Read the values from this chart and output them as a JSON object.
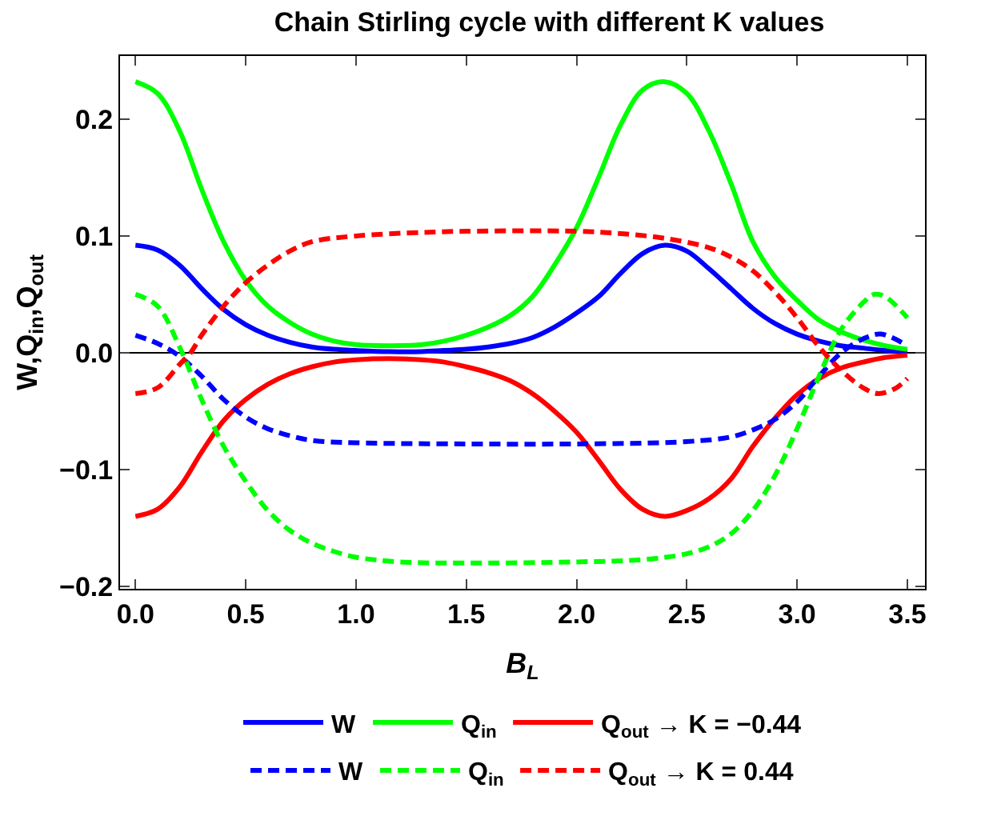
{
  "chart_data": {
    "type": "line",
    "title": "Chain Stirling cycle with different K values",
    "xlabel": "B$_{L}$",
    "ylabel": "W,Q$_{in}$,Q$_{out}$",
    "xlim": [
      -0.07,
      3.58
    ],
    "ylim": [
      -0.202,
      0.254
    ],
    "xticks": [
      {
        "value": 0,
        "label": "0.0"
      },
      {
        "value": 0.5,
        "label": "0.5"
      },
      {
        "value": 1,
        "label": "1.0"
      },
      {
        "value": 1.5,
        "label": "1.5"
      },
      {
        "value": 2,
        "label": "2.0"
      },
      {
        "value": 2.5,
        "label": "2.5"
      },
      {
        "value": 3,
        "label": "3.0"
      },
      {
        "value": 3.5,
        "label": "3.5"
      }
    ],
    "yticks": [
      {
        "value": -0.2,
        "label": "−0.2"
      },
      {
        "value": -0.1,
        "label": "−0.1"
      },
      {
        "value": 0,
        "label": "0.0"
      },
      {
        "value": 0.1,
        "label": "0.1"
      },
      {
        "value": 0.2,
        "label": "0.2"
      }
    ],
    "grid": false,
    "legend": "bottom",
    "marker": "none",
    "ref_lines": [
      {
        "axis": "y",
        "value": 0,
        "color": "#000000"
      }
    ],
    "series": [
      {
        "name": "W",
        "color": "#0000ff",
        "line_style": "solid",
        "x": [
          0,
          0.1,
          0.2,
          0.3,
          0.4,
          0.5,
          0.6,
          0.7,
          0.8,
          0.9,
          1.0,
          1.15,
          1.3,
          1.4,
          1.5,
          1.6,
          1.7,
          1.8,
          1.9,
          2.0,
          2.1,
          2.2,
          2.3,
          2.4,
          2.5,
          2.6,
          2.7,
          2.8,
          2.9,
          3.0,
          3.1,
          3.2,
          3.3,
          3.4,
          3.5
        ],
        "values": [
          0.092,
          0.088,
          0.075,
          0.055,
          0.037,
          0.024,
          0.015,
          0.009,
          0.005,
          0.003,
          0.002,
          0.001,
          0.001,
          0.002,
          0.003,
          0.005,
          0.008,
          0.013,
          0.022,
          0.034,
          0.048,
          0.068,
          0.085,
          0.092,
          0.087,
          0.072,
          0.055,
          0.038,
          0.025,
          0.016,
          0.01,
          0.006,
          0.004,
          0.002,
          0.001
        ]
      },
      {
        "name": "Q$_{in}$",
        "color": "#00ff00",
        "line_style": "solid",
        "x": [
          0,
          0.1,
          0.2,
          0.3,
          0.4,
          0.5,
          0.6,
          0.7,
          0.8,
          0.9,
          1.0,
          1.15,
          1.3,
          1.4,
          1.5,
          1.6,
          1.7,
          1.8,
          1.9,
          2.0,
          2.1,
          2.2,
          2.3,
          2.4,
          2.5,
          2.6,
          2.7,
          2.8,
          2.9,
          3.0,
          3.1,
          3.2,
          3.3,
          3.4,
          3.5
        ],
        "values": [
          0.232,
          0.222,
          0.19,
          0.14,
          0.095,
          0.062,
          0.04,
          0.026,
          0.016,
          0.01,
          0.007,
          0.006,
          0.007,
          0.01,
          0.015,
          0.022,
          0.032,
          0.048,
          0.075,
          0.107,
          0.15,
          0.195,
          0.225,
          0.232,
          0.222,
          0.19,
          0.145,
          0.095,
          0.065,
          0.045,
          0.028,
          0.018,
          0.011,
          0.006,
          0.003
        ]
      },
      {
        "name": "Q$_{out}$ → K = −0.44",
        "color": "#ff0000",
        "line_style": "solid",
        "x": [
          0,
          0.1,
          0.2,
          0.3,
          0.4,
          0.5,
          0.6,
          0.7,
          0.8,
          0.9,
          1.0,
          1.15,
          1.3,
          1.4,
          1.5,
          1.6,
          1.7,
          1.8,
          1.9,
          2.0,
          2.1,
          2.2,
          2.3,
          2.4,
          2.5,
          2.6,
          2.7,
          2.8,
          2.9,
          3.0,
          3.1,
          3.2,
          3.3,
          3.4,
          3.5
        ],
        "values": [
          -0.14,
          -0.134,
          -0.115,
          -0.085,
          -0.058,
          -0.04,
          -0.027,
          -0.018,
          -0.012,
          -0.008,
          -0.006,
          -0.005,
          -0.006,
          -0.008,
          -0.012,
          -0.017,
          -0.024,
          -0.035,
          -0.05,
          -0.068,
          -0.092,
          -0.117,
          -0.134,
          -0.14,
          -0.135,
          -0.125,
          -0.108,
          -0.08,
          -0.056,
          -0.036,
          -0.022,
          -0.013,
          -0.008,
          -0.004,
          -0.002
        ]
      },
      {
        "name": "W",
        "color": "#0000ff",
        "line_style": "dashed",
        "x": [
          0,
          0.1,
          0.2,
          0.3,
          0.4,
          0.5,
          0.6,
          0.7,
          0.8,
          1.0,
          1.5,
          2.0,
          2.5,
          2.7,
          2.8,
          2.9,
          3.0,
          3.1,
          3.2,
          3.3,
          3.38,
          3.5
        ],
        "values": [
          0.015,
          0.008,
          -0.003,
          -0.02,
          -0.04,
          -0.055,
          -0.065,
          -0.071,
          -0.075,
          -0.077,
          -0.078,
          -0.078,
          -0.076,
          -0.072,
          -0.066,
          -0.057,
          -0.042,
          -0.02,
          0.0,
          0.012,
          0.016,
          0.006
        ]
      },
      {
        "name": "Q$_{in}$",
        "color": "#00ff00",
        "line_style": "dashed",
        "x": [
          0,
          0.1,
          0.2,
          0.3,
          0.4,
          0.5,
          0.6,
          0.7,
          0.8,
          0.9,
          1.0,
          1.2,
          1.5,
          2.0,
          2.3,
          2.5,
          2.6,
          2.7,
          2.8,
          2.9,
          3.0,
          3.1,
          3.2,
          3.3,
          3.35,
          3.4,
          3.5
        ],
        "values": [
          0.05,
          0.04,
          0.005,
          -0.04,
          -0.08,
          -0.11,
          -0.135,
          -0.152,
          -0.163,
          -0.17,
          -0.175,
          -0.179,
          -0.18,
          -0.179,
          -0.177,
          -0.172,
          -0.166,
          -0.155,
          -0.135,
          -0.105,
          -0.065,
          -0.02,
          0.02,
          0.043,
          0.05,
          0.048,
          0.03
        ]
      },
      {
        "name": "Q$_{out}$ → K = 0.44",
        "color": "#ff0000",
        "line_style": "dashed",
        "x": [
          0,
          0.1,
          0.2,
          0.25,
          0.3,
          0.4,
          0.5,
          0.6,
          0.7,
          0.8,
          1.0,
          1.3,
          1.5,
          2.0,
          2.2,
          2.4,
          2.6,
          2.7,
          2.8,
          2.9,
          3.0,
          3.1,
          3.2,
          3.3,
          3.37,
          3.45,
          3.5
        ],
        "values": [
          -0.035,
          -0.03,
          -0.01,
          0.0,
          0.015,
          0.04,
          0.06,
          0.075,
          0.087,
          0.095,
          0.1,
          0.103,
          0.104,
          0.104,
          0.102,
          0.098,
          0.09,
          0.082,
          0.07,
          0.052,
          0.03,
          0.005,
          -0.015,
          -0.03,
          -0.035,
          -0.03,
          -0.022
        ]
      }
    ]
  }
}
